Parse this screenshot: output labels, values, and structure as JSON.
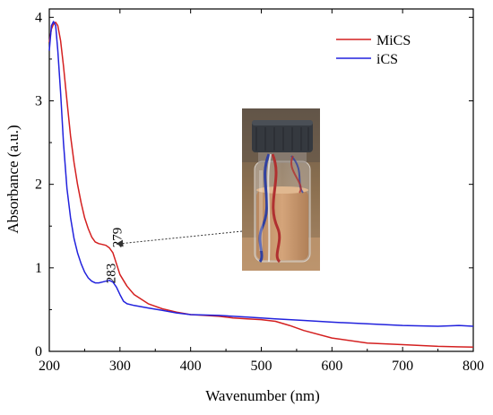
{
  "chart_data": {
    "type": "line",
    "title": "",
    "xlabel": "Wavenumber (nm)",
    "ylabel": "Absorbance (a.u.)",
    "xlim": [
      200,
      800
    ],
    "ylim": [
      0,
      4.1
    ],
    "xticks": [
      200,
      300,
      400,
      500,
      600,
      700,
      800
    ],
    "yticks": [
      0,
      1,
      2,
      3,
      4
    ],
    "grid": false,
    "legend_position": "top-right",
    "series": [
      {
        "name": "MiCS",
        "color": "#d42020",
        "x": [
          200,
          203,
          206,
          209,
          212,
          216,
          220,
          225,
          230,
          235,
          240,
          245,
          250,
          255,
          260,
          265,
          270,
          275,
          280,
          285,
          290,
          295,
          300,
          310,
          320,
          340,
          360,
          380,
          400,
          420,
          440,
          460,
          480,
          500,
          520,
          540,
          560,
          600,
          650,
          700,
          750,
          800
        ],
        "y": [
          3.7,
          3.86,
          3.92,
          3.94,
          3.9,
          3.72,
          3.42,
          3.0,
          2.58,
          2.26,
          2.0,
          1.78,
          1.6,
          1.47,
          1.37,
          1.31,
          1.29,
          1.28,
          1.27,
          1.24,
          1.18,
          1.05,
          0.92,
          0.78,
          0.68,
          0.57,
          0.51,
          0.47,
          0.44,
          0.43,
          0.42,
          0.4,
          0.39,
          0.38,
          0.36,
          0.31,
          0.25,
          0.16,
          0.1,
          0.08,
          0.06,
          0.05
        ]
      },
      {
        "name": "iCS",
        "color": "#2222dd",
        "x": [
          200,
          203,
          206,
          209,
          212,
          216,
          220,
          225,
          230,
          235,
          240,
          245,
          250,
          255,
          260,
          265,
          270,
          275,
          280,
          285,
          290,
          295,
          300,
          305,
          310,
          320,
          340,
          360,
          380,
          400,
          440,
          480,
          500,
          520,
          560,
          600,
          650,
          700,
          750,
          780,
          800
        ],
        "y": [
          3.6,
          3.9,
          3.95,
          3.9,
          3.6,
          3.1,
          2.5,
          1.95,
          1.6,
          1.35,
          1.18,
          1.05,
          0.95,
          0.88,
          0.84,
          0.82,
          0.82,
          0.83,
          0.84,
          0.85,
          0.83,
          0.77,
          0.68,
          0.6,
          0.57,
          0.55,
          0.52,
          0.49,
          0.46,
          0.44,
          0.43,
          0.41,
          0.4,
          0.39,
          0.37,
          0.35,
          0.33,
          0.31,
          0.3,
          0.31,
          0.3
        ]
      }
    ],
    "annotations": [
      {
        "text": "279",
        "x": 291,
        "y": 1.2
      },
      {
        "text": "283",
        "x": 282,
        "y": 0.77
      }
    ],
    "inset_photo": {
      "description_icon": "glass-vial-with-brown-liquid",
      "arrow_target": {
        "x": 293,
        "y": 1.2
      }
    }
  }
}
